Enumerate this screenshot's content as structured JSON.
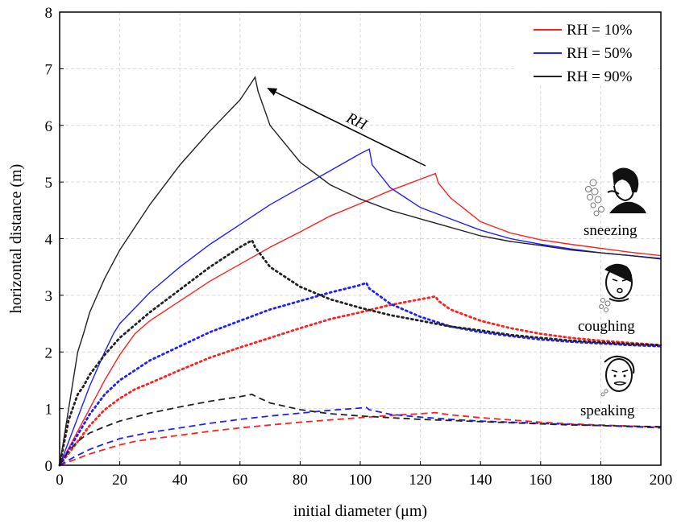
{
  "chart_data": {
    "type": "line",
    "xlabel": "initial diameter (μm)",
    "ylabel": "horizontal distance (m)",
    "xlim": [
      0,
      200
    ],
    "ylim": [
      0,
      8
    ],
    "xticks": [
      0,
      20,
      40,
      60,
      80,
      100,
      120,
      140,
      160,
      180,
      200
    ],
    "yticks": [
      0,
      1,
      2,
      3,
      4,
      5,
      6,
      7,
      8
    ],
    "grid": true,
    "legend_position": "top-right",
    "legend": [
      {
        "label": "RH = 10%",
        "color": "#ff2020"
      },
      {
        "label": "RH = 50%",
        "color": "#2020ff"
      },
      {
        "label": "RH = 90%",
        "color": "#222222"
      }
    ],
    "arrow_label": "RH",
    "categories": [
      {
        "label": "sneezing",
        "line_style": "solid",
        "icon": "sneezing-person-icon"
      },
      {
        "label": "coughing",
        "line_style": "dotted",
        "icon": "coughing-person-icon"
      },
      {
        "label": "speaking",
        "line_style": "dashed",
        "icon": "speaking-person-icon"
      }
    ],
    "series": [
      {
        "category": "sneezing",
        "rh": "10%",
        "color": "#ff2020",
        "dash": "solid",
        "x": [
          0,
          5,
          10,
          15,
          20,
          25,
          30,
          40,
          50,
          60,
          70,
          80,
          90,
          100,
          110,
          120,
          125,
          126,
          130,
          140,
          150,
          160,
          170,
          180,
          190,
          200
        ],
        "y": [
          0,
          0.5,
          1.0,
          1.5,
          1.95,
          2.32,
          2.55,
          2.9,
          3.25,
          3.55,
          3.85,
          4.12,
          4.4,
          4.62,
          4.85,
          5.05,
          5.15,
          4.98,
          4.72,
          4.3,
          4.1,
          3.98,
          3.9,
          3.83,
          3.76,
          3.7
        ]
      },
      {
        "category": "sneezing",
        "rh": "50%",
        "color": "#2020ff",
        "dash": "solid",
        "x": [
          0,
          5,
          10,
          15,
          18,
          20,
          30,
          40,
          50,
          60,
          70,
          80,
          90,
          100,
          103,
          104,
          110,
          120,
          130,
          140,
          150,
          160,
          170,
          180,
          190,
          200
        ],
        "y": [
          0,
          0.7,
          1.4,
          2.0,
          2.33,
          2.5,
          3.05,
          3.5,
          3.9,
          4.25,
          4.6,
          4.9,
          5.2,
          5.5,
          5.58,
          5.3,
          4.9,
          4.55,
          4.35,
          4.15,
          4.0,
          3.9,
          3.82,
          3.75,
          3.7,
          3.65
        ]
      },
      {
        "category": "sneezing",
        "rh": "90%",
        "color": "#222222",
        "dash": "solid",
        "x": [
          0,
          3,
          6,
          8,
          10,
          15,
          20,
          30,
          40,
          50,
          60,
          65,
          66,
          70,
          80,
          90,
          100,
          110,
          120,
          130,
          140,
          150,
          160,
          170,
          180,
          190,
          200
        ],
        "y": [
          0,
          1.0,
          2.0,
          2.33,
          2.7,
          3.3,
          3.8,
          4.6,
          5.3,
          5.9,
          6.45,
          6.85,
          6.6,
          6.0,
          5.35,
          4.95,
          4.7,
          4.5,
          4.35,
          4.2,
          4.05,
          3.95,
          3.88,
          3.8,
          3.75,
          3.7,
          3.64
        ]
      },
      {
        "category": "coughing",
        "rh": "10%",
        "color": "#ff2020",
        "dash": "dotted",
        "x": [
          0,
          5,
          10,
          15,
          20,
          25,
          30,
          40,
          50,
          60,
          70,
          80,
          90,
          100,
          110,
          120,
          125,
          126,
          130,
          140,
          150,
          160,
          170,
          180,
          190,
          200
        ],
        "y": [
          0,
          0.35,
          0.7,
          0.98,
          1.18,
          1.34,
          1.45,
          1.68,
          1.9,
          2.08,
          2.25,
          2.42,
          2.58,
          2.7,
          2.83,
          2.93,
          2.98,
          2.9,
          2.75,
          2.55,
          2.42,
          2.32,
          2.25,
          2.2,
          2.16,
          2.12
        ]
      },
      {
        "category": "coughing",
        "rh": "50%",
        "color": "#2020ff",
        "dash": "dotted",
        "x": [
          0,
          5,
          10,
          15,
          18,
          20,
          30,
          40,
          50,
          60,
          70,
          80,
          90,
          100,
          102,
          103,
          110,
          120,
          130,
          140,
          150,
          160,
          170,
          180,
          190,
          200
        ],
        "y": [
          0,
          0.45,
          0.9,
          1.25,
          1.4,
          1.5,
          1.85,
          2.1,
          2.35,
          2.55,
          2.75,
          2.9,
          3.05,
          3.18,
          3.22,
          3.12,
          2.85,
          2.62,
          2.45,
          2.35,
          2.28,
          2.22,
          2.18,
          2.15,
          2.12,
          2.1
        ]
      },
      {
        "category": "coughing",
        "rh": "90%",
        "color": "#222222",
        "dash": "dotted",
        "x": [
          0,
          3,
          6,
          8,
          10,
          15,
          20,
          30,
          40,
          50,
          60,
          64,
          65,
          70,
          80,
          90,
          100,
          110,
          120,
          130,
          140,
          150,
          160,
          170,
          180,
          190,
          200
        ],
        "y": [
          0,
          0.8,
          1.25,
          1.4,
          1.6,
          1.95,
          2.25,
          2.7,
          3.1,
          3.5,
          3.85,
          3.97,
          3.85,
          3.5,
          3.15,
          2.93,
          2.78,
          2.65,
          2.55,
          2.45,
          2.38,
          2.3,
          2.25,
          2.2,
          2.17,
          2.14,
          2.12
        ]
      },
      {
        "category": "speaking",
        "rh": "10%",
        "color": "#ff2020",
        "dash": "dashed",
        "x": [
          0,
          5,
          10,
          15,
          20,
          25,
          30,
          40,
          50,
          60,
          70,
          80,
          90,
          100,
          110,
          120,
          125,
          126,
          130,
          140,
          150,
          160,
          170,
          180,
          190,
          200
        ],
        "y": [
          0,
          0.1,
          0.2,
          0.28,
          0.36,
          0.42,
          0.46,
          0.53,
          0.6,
          0.66,
          0.71,
          0.76,
          0.8,
          0.84,
          0.88,
          0.91,
          0.93,
          0.92,
          0.89,
          0.84,
          0.8,
          0.76,
          0.73,
          0.71,
          0.69,
          0.67
        ]
      },
      {
        "category": "speaking",
        "rh": "50%",
        "color": "#2020ff",
        "dash": "dashed",
        "x": [
          0,
          5,
          10,
          15,
          18,
          20,
          30,
          40,
          50,
          60,
          70,
          80,
          90,
          100,
          102,
          103,
          110,
          120,
          130,
          140,
          150,
          160,
          170,
          180,
          190,
          200
        ],
        "y": [
          0,
          0.15,
          0.28,
          0.38,
          0.43,
          0.47,
          0.58,
          0.66,
          0.74,
          0.81,
          0.87,
          0.92,
          0.97,
          1.01,
          1.02,
          0.98,
          0.9,
          0.85,
          0.81,
          0.78,
          0.76,
          0.74,
          0.72,
          0.7,
          0.68,
          0.66
        ]
      },
      {
        "category": "speaking",
        "rh": "90%",
        "color": "#222222",
        "dash": "dashed",
        "x": [
          0,
          3,
          6,
          8,
          10,
          15,
          20,
          30,
          40,
          50,
          60,
          64,
          65,
          70,
          80,
          90,
          100,
          110,
          120,
          130,
          140,
          150,
          160,
          170,
          180,
          190,
          200
        ],
        "y": [
          0,
          0.25,
          0.42,
          0.5,
          0.57,
          0.68,
          0.78,
          0.92,
          1.03,
          1.13,
          1.21,
          1.25,
          1.22,
          1.1,
          0.98,
          0.91,
          0.87,
          0.84,
          0.81,
          0.79,
          0.77,
          0.75,
          0.73,
          0.71,
          0.7,
          0.69,
          0.68
        ]
      }
    ]
  }
}
